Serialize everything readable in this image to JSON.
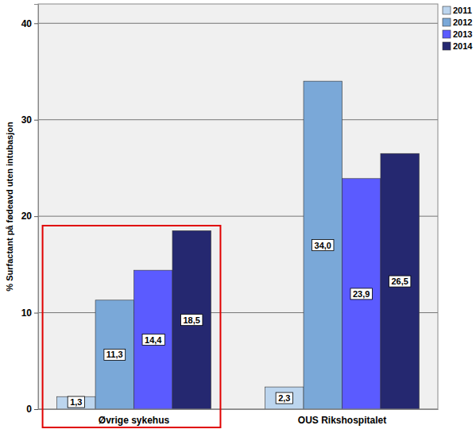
{
  "chart_data": {
    "type": "bar",
    "y_label": "% Surfactant på fødeavd uten intubasjon",
    "categories": [
      "Øvrige sykehus",
      "OUS Rikshospitalet"
    ],
    "series": [
      {
        "name": "2011",
        "color": "#bcd5ee",
        "values": [
          1.3,
          2.3
        ],
        "value_labels": [
          "1,3",
          "2,3"
        ]
      },
      {
        "name": "2012",
        "color": "#7aa8d8",
        "values": [
          11.3,
          34.0
        ],
        "value_labels": [
          "11,3",
          "34,0"
        ]
      },
      {
        "name": "2013",
        "color": "#5b5bff",
        "values": [
          14.4,
          23.9
        ],
        "value_labels": [
          "14,4",
          "23,9"
        ]
      },
      {
        "name": "2014",
        "color": "#252870",
        "values": [
          18.5,
          26.5
        ],
        "value_labels": [
          "18,5",
          "26,5"
        ]
      }
    ],
    "ylim": [
      0,
      42
    ],
    "yticks": [
      0,
      10,
      20,
      30,
      40
    ],
    "grid": true,
    "legend": "top-right",
    "data_labels": true
  }
}
